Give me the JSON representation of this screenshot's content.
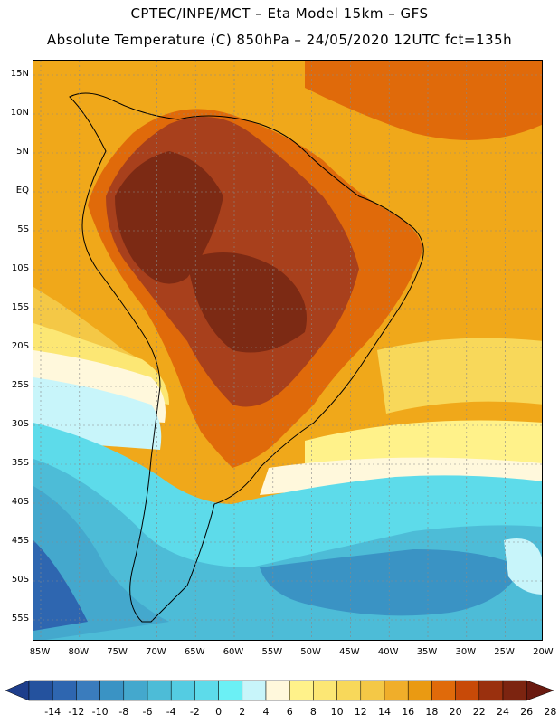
{
  "header": {
    "title_line1": "CPTEC/INPE/MCT –  Eta Model 15km – GFS",
    "title_line2": "Absolute Temperature (C) 850hPa – 24/05/2020 12UTC fct=135h"
  },
  "map": {
    "lat_labels": [
      "15N",
      "10N",
      "5N",
      "EQ",
      "5S",
      "10S",
      "15S",
      "20S",
      "25S",
      "30S",
      "35S",
      "40S",
      "45S",
      "50S",
      "55S"
    ],
    "lon_labels": [
      "85W",
      "80W",
      "75W",
      "70W",
      "65W",
      "60W",
      "55W",
      "50W",
      "45W",
      "40W",
      "35W",
      "30W",
      "25W",
      "20W"
    ],
    "colors": {
      "ocean_warm_north": "#f0a81a",
      "continent_hot": "#a8401c",
      "continent_core": "#7c2a14",
      "cold_south": "#52cde6"
    }
  },
  "colorbar": {
    "labels": [
      "-14",
      "-12",
      "-10",
      "-8",
      "-6",
      "-4",
      "-2",
      "0",
      "2",
      "4",
      "6",
      "8",
      "10",
      "12",
      "14",
      "16",
      "18",
      "20",
      "22",
      "24",
      "26",
      "28"
    ],
    "colors": [
      "#1e3e8c",
      "#24529e",
      "#2e66b0",
      "#3a7cbd",
      "#3a93c4",
      "#44a8cd",
      "#4dbcd7",
      "#54cce2",
      "#5ddbea",
      "#6bf0f5",
      "#c8f5fa",
      "#fff8dc",
      "#fff28a",
      "#fce774",
      "#f8d85a",
      "#f4c846",
      "#f0ae2a",
      "#ea9a12",
      "#e06a0a",
      "#c84a08",
      "#9a300e",
      "#7c2410",
      "#6a1a10"
    ]
  }
}
